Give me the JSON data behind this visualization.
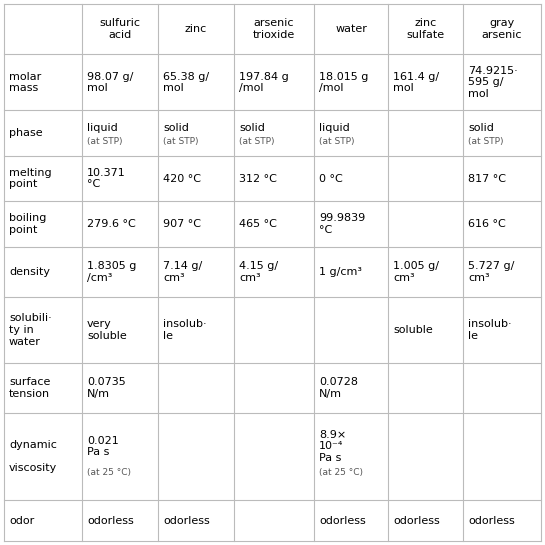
{
  "col_headers": [
    "",
    "sulfuric\nacid",
    "zinc",
    "arsenic\ntrioxide",
    "water",
    "zinc\nsulfate",
    "gray\narsenic"
  ],
  "rows": [
    {
      "label": "molar\nmass",
      "values": [
        "98.07 g/\nmol",
        "65.38 g/\nmol",
        "197.84 g\n/mol",
        "18.015 g\n/mol",
        "161.4 g/\nmol",
        "74.9215·\n595 g/\nmol"
      ]
    },
    {
      "label": "phase",
      "values": [
        "liquid\n‣(at STP)",
        "solid\n‣(at STP)",
        "solid\n‣(at STP)",
        "liquid\n‣(at STP)",
        "",
        "solid\n‣(at STP)"
      ]
    },
    {
      "label": "melting\npoint",
      "values": [
        "10.371\n°C",
        "420 °C",
        "312 °C",
        "0 °C",
        "",
        "817 °C"
      ]
    },
    {
      "label": "boiling\npoint",
      "values": [
        "279.6 °C",
        "907 °C",
        "465 °C",
        "99.9839\n°C",
        "",
        "616 °C"
      ]
    },
    {
      "label": "density",
      "values": [
        "1.8305 g\n/cm³",
        "7.14 g/\ncm³",
        "4.15 g/\ncm³",
        "1 g/cm³",
        "1.005 g/\ncm³",
        "5.727 g/\ncm³"
      ]
    },
    {
      "label": "solubili·\nty in\nwater",
      "values": [
        "very\nsoluble",
        "insolub·\nle",
        "",
        "",
        "soluble",
        "insolub·\nle"
      ]
    },
    {
      "label": "surface\ntension",
      "values": [
        "0.0735\nN/m",
        "",
        "",
        "0.0728\nN/m",
        "",
        ""
      ]
    },
    {
      "label": "dynamic\n\nviscosity",
      "values": [
        "0.021\nPa s\n‣(at 25 °C)",
        "",
        "",
        "8.9×\n10⁻⁴\nPa s\n‣(at 25 °C)",
        "",
        ""
      ]
    },
    {
      "label": "odor",
      "values": [
        "odorless",
        "odorless",
        "",
        "odorless",
        "odorless",
        "odorless"
      ]
    }
  ],
  "line_color": "#bbbbbb",
  "text_color": "#000000",
  "small_color": "#555555",
  "bg_color": "#ffffff",
  "cell_fs": 8.0,
  "small_fs": 6.5,
  "label_fs": 8.0,
  "header_fs": 8.0
}
